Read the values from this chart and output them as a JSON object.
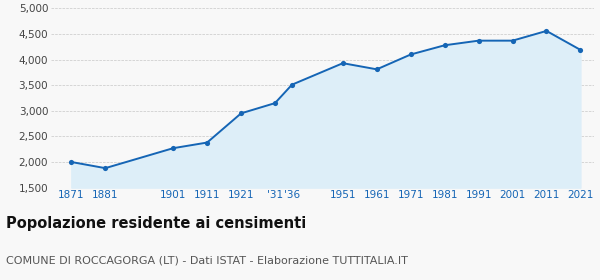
{
  "years": [
    1871,
    1881,
    1901,
    1911,
    1921,
    1931,
    1936,
    1951,
    1961,
    1971,
    1981,
    1991,
    2001,
    2011,
    2021
  ],
  "population": [
    2000,
    1880,
    2270,
    2380,
    2950,
    3150,
    3510,
    3930,
    3810,
    4100,
    4280,
    4370,
    4370,
    4560,
    4190
  ],
  "ylim": [
    1500,
    5000
  ],
  "yticks": [
    1500,
    2000,
    2500,
    3000,
    3500,
    4000,
    4500,
    5000
  ],
  "ytick_labels": [
    "1,500",
    "2,000",
    "2,500",
    "3,000",
    "3,500",
    "4,000",
    "4,500",
    "5,000"
  ],
  "xtick_positions": [
    1871,
    1881,
    1901,
    1911,
    1921,
    1931,
    1936,
    1951,
    1961,
    1971,
    1981,
    1991,
    2001,
    2011,
    2021
  ],
  "xtick_labels": [
    "1871",
    "1881",
    "1901",
    "1911",
    "1921",
    "'31",
    "'36",
    "1951",
    "1961",
    "1971",
    "1981",
    "1991",
    "2001",
    "2011",
    "2021"
  ],
  "xlim": [
    1865,
    2025
  ],
  "line_color": "#1565b5",
  "fill_color": "#ddeef8",
  "marker_color": "#1565b5",
  "grid_color": "#c8c8c8",
  "title": "Popolazione residente ai censimenti",
  "subtitle": "COMUNE DI ROCCAGORGA (LT) - Dati ISTAT - Elaborazione TUTTITALIA.IT",
  "title_fontsize": 10.5,
  "subtitle_fontsize": 8,
  "tick_fontsize": 7.5,
  "background_color": "#f8f8f8",
  "title_color": "#111111",
  "subtitle_color": "#555555",
  "xtick_color": "#1565b5",
  "ytick_color": "#444444"
}
